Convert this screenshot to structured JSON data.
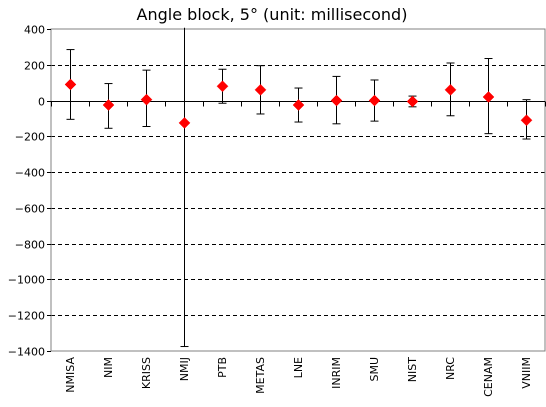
{
  "chart_data": {
    "type": "scatter",
    "title": "Angle block, 5° (unit: millisecond)",
    "xlabel": "",
    "ylabel": "",
    "ylim": [
      -1400,
      400
    ],
    "yticks": [
      400,
      200,
      0,
      -200,
      -400,
      -600,
      -800,
      -1000,
      -1200,
      -1400
    ],
    "ytick_labels": [
      "400",
      "200",
      "0",
      "−200",
      "−400",
      "−600",
      "−800",
      "−1000",
      "−1200",
      "−1400"
    ],
    "grid": "horizontal dashed",
    "marker_color": "#ff0000",
    "categories": [
      "NMISA",
      "NIM",
      "KRISS",
      "NMIJ",
      "PTB",
      "METAS",
      "LNE",
      "INRIM",
      "SMU",
      "NIST",
      "NRC",
      "CENAM",
      "VNIIM"
    ],
    "values": [
      90,
      -25,
      5,
      -125,
      80,
      60,
      -25,
      0,
      0,
      -5,
      60,
      20,
      -110
    ],
    "error_low": [
      -105,
      -155,
      -145,
      -1375,
      -15,
      -75,
      -120,
      -130,
      -115,
      -35,
      -85,
      -185,
      -215
    ],
    "error_high": [
      285,
      95,
      170,
      430,
      175,
      195,
      70,
      135,
      115,
      25,
      210,
      235,
      5
    ]
  }
}
